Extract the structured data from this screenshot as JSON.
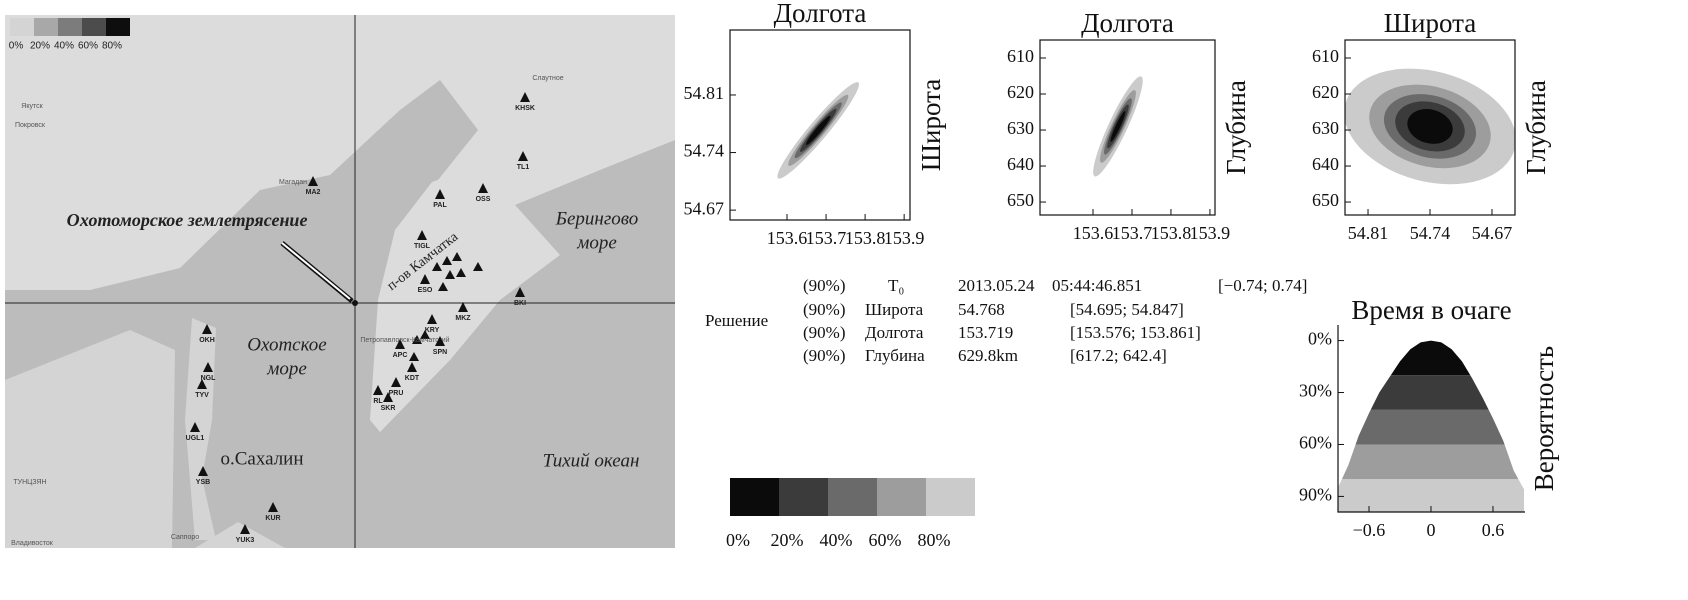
{
  "map": {
    "legend_labels": [
      "0%",
      "20%",
      "40%",
      "60%",
      "80%"
    ],
    "legend_colors": [
      "#d4d4d4",
      "#a8a8a8",
      "#7c7c7c",
      "#4c4c4c",
      "#0e0e0e"
    ],
    "event_label": "Охотоморское землетрясение",
    "bering_sea": [
      "Берингово",
      "море"
    ],
    "okhotsk_sea": [
      "Охотское",
      "море"
    ],
    "kamchatka": "п-ов Камчатка",
    "sakhalin": "о.Сахалин",
    "pacific": "Тихий океан",
    "towns": [
      "Якутск",
      "Покровск",
      "Магадан",
      "Петропавловск-Камчатский",
      "Саппоро",
      "Владивосток",
      "ТУНЦЗЯН",
      "Слаутное"
    ],
    "stations": [
      "KHSK",
      "TL1",
      "MA2",
      "PAL",
      "OSS",
      "TIGL",
      "ESO",
      "BKI",
      "MKZ",
      "KRY",
      "APC",
      "SPN",
      "KDT",
      "PRU",
      "RL",
      "SKR",
      "OKH",
      "NGL",
      "TYV",
      "UGL1",
      "YSB",
      "KUR",
      "YUK3"
    ]
  },
  "solution": {
    "label": "Решение",
    "rows": [
      [
        "(90%)",
        "T₀",
        "2013.05.24",
        "05:44:46.851",
        "[−0.74; 0.74]"
      ],
      [
        "(90%)",
        "Широта",
        "54.768",
        "[54.695; 54.847]"
      ],
      [
        "(90%)",
        "Долгота",
        "153.719",
        "[153.576; 153.861]"
      ],
      [
        "(90%)",
        "Глубина",
        "629.8km",
        "[617.2; 642.4]"
      ]
    ]
  },
  "colorbar": {
    "labels": [
      "0%",
      "20%",
      "40%",
      "60%",
      "80%"
    ],
    "colors": [
      "#0b0b0b",
      "#3b3b3b",
      "#6a6a6a",
      "#9d9d9d",
      "#cbcbcb"
    ]
  },
  "chart_data": [
    {
      "type": "contour",
      "xlabel": "Долгота",
      "ylabel": "Широта",
      "xlim": [
        153.454,
        153.915
      ],
      "xticks": [
        153.6,
        153.7,
        153.8,
        153.9
      ],
      "ylim": [
        54.658,
        54.889
      ],
      "yticks": [
        54.67,
        54.74,
        54.81
      ],
      "center": [
        153.68,
        54.767
      ],
      "tilt": 40,
      "levels": [
        {
          "rx": 0.007,
          "ry": 0.023
        },
        {
          "rx": 0.01,
          "ry": 0.034
        },
        {
          "rx": 0.013,
          "ry": 0.044
        },
        {
          "rx": 0.017,
          "ry": 0.056
        },
        {
          "rx": 0.024,
          "ry": 0.076
        }
      ]
    },
    {
      "type": "contour",
      "xlabel": "Долгота",
      "ylabel": "Глубина",
      "xlim": [
        153.464,
        153.913
      ],
      "xticks": [
        153.6,
        153.7,
        153.8,
        153.9
      ],
      "ylim": [
        653.6,
        605
      ],
      "yticks": [
        610,
        620,
        630,
        640,
        650
      ],
      "center": [
        153.664,
        629
      ],
      "tilt": 25,
      "levels": [
        {
          "rx": 0.006,
          "ry": 4.7
        },
        {
          "rx": 0.01,
          "ry": 6.7
        },
        {
          "rx": 0.013,
          "ry": 8.6
        },
        {
          "rx": 0.017,
          "ry": 11.1
        },
        {
          "rx": 0.024,
          "ry": 15.3
        }
      ]
    },
    {
      "type": "contour",
      "xlabel": "Широта",
      "ylabel": "Глубина",
      "xlim": [
        54.836,
        54.644
      ],
      "xticks": [
        54.81,
        54.74,
        54.67
      ],
      "ylim": [
        653.6,
        605
      ],
      "yticks": [
        610,
        620,
        630,
        640,
        650
      ],
      "center": [
        54.74,
        629
      ],
      "tilt": 15,
      "levels": [
        {
          "rx": 0.026,
          "ry": 4.7
        },
        {
          "rx": 0.04,
          "ry": 6.7
        },
        {
          "rx": 0.053,
          "ry": 8.6
        },
        {
          "rx": 0.07,
          "ry": 11.1
        },
        {
          "rx": 0.099,
          "ry": 15.3
        }
      ]
    },
    {
      "type": "area",
      "title": "Время в очаге",
      "ylabel": "Вероятность",
      "xlim": [
        -0.9,
        0.91
      ],
      "xticks": [
        {
          "value": -0.6,
          "label": "−0.6"
        },
        0,
        0.6
      ],
      "ylim": [
        99,
        -9
      ],
      "yticks": [
        {
          "value": 0,
          "label": "0%"
        },
        {
          "value": 30,
          "label": "30%"
        },
        {
          "value": 60,
          "label": "60%"
        },
        {
          "value": 90,
          "label": "90%"
        }
      ],
      "x": [
        -0.9,
        -0.8,
        -0.7,
        -0.6,
        -0.5,
        -0.4,
        -0.3,
        -0.2,
        -0.1,
        0,
        0.1,
        0.2,
        0.3,
        0.4,
        0.5,
        0.6,
        0.7,
        0.8,
        0.9
      ],
      "values": [
        85,
        72,
        55,
        42,
        30,
        21,
        12,
        5,
        1,
        0,
        1,
        5,
        12,
        22,
        33,
        45,
        58,
        75,
        86
      ],
      "band_edges": [
        0,
        20,
        40,
        60,
        80
      ]
    }
  ]
}
